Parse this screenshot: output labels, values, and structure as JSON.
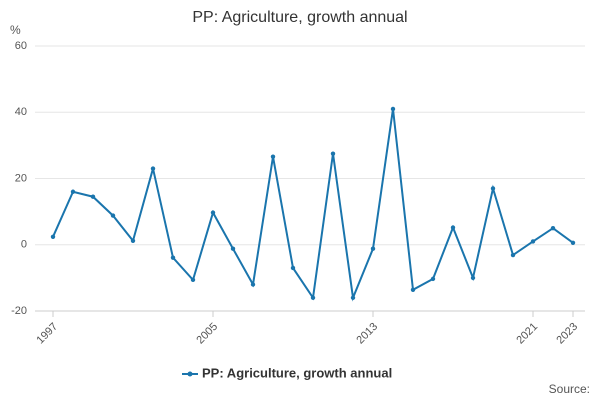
{
  "chart_data": {
    "type": "line",
    "title": "PP: Agriculture, growth annual",
    "y_label": "%",
    "source": "Source:",
    "x": [
      1997,
      1998,
      1999,
      2000,
      2001,
      2002,
      2003,
      2004,
      2005,
      2006,
      2007,
      2008,
      2009,
      2010,
      2011,
      2012,
      2013,
      2014,
      2015,
      2016,
      2017,
      2018,
      2019,
      2020,
      2021,
      2022,
      2023
    ],
    "series": [
      {
        "name": "PP: Agriculture, growth annual",
        "color": "#1a75ad",
        "values": [
          2.4,
          16,
          14.5,
          8.8,
          1.2,
          23,
          -3.9,
          -10.6,
          9.7,
          -1.2,
          -12,
          26.6,
          -7,
          -16,
          27.5,
          -16,
          -1.2,
          41,
          -13.6,
          -10.3,
          5.2,
          -10,
          17,
          -3.1,
          1,
          5,
          0.6
        ]
      }
    ],
    "xlim": [
      1997,
      2023
    ],
    "xticks": [
      1997,
      2005,
      2013,
      2021,
      2023
    ],
    "ylim": [
      -20,
      60
    ],
    "yticks": [
      -20,
      0,
      20,
      40,
      60
    ],
    "grid": true
  }
}
